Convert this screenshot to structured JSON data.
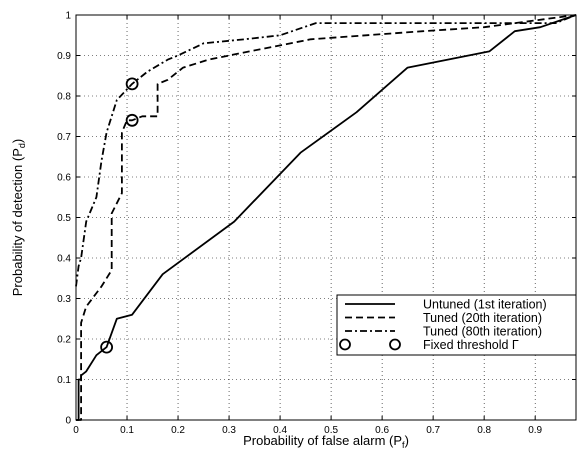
{
  "chart_data": {
    "type": "line",
    "xlabel": "Probability of false alarm (P",
    "xlabel_sub": "f",
    "ylabel": "Probability of detection (P",
    "ylabel_sub": "d",
    "xlim": [
      0,
      0.98
    ],
    "ylim": [
      0,
      1
    ],
    "xticks": [
      0,
      0.1,
      0.2,
      0.3,
      0.4,
      0.5,
      0.6,
      0.7,
      0.8,
      0.9
    ],
    "yticks": [
      0,
      0.1,
      0.2,
      0.3,
      0.4,
      0.5,
      0.6,
      0.7,
      0.8,
      0.9,
      1
    ],
    "grid": true,
    "legend_position": "bottom-right",
    "series": [
      {
        "name": "Untuned (1st iteration)",
        "style": "solid",
        "x": [
          0,
          0.005,
          0.005,
          0.01,
          0.01,
          0.02,
          0.04,
          0.06,
          0.08,
          0.11,
          0.17,
          0.31,
          0.44,
          0.55,
          0.65,
          0.81,
          0.86,
          0.91,
          0.98
        ],
        "y": [
          0,
          0,
          0.1,
          0.1,
          0.11,
          0.12,
          0.16,
          0.18,
          0.25,
          0.26,
          0.36,
          0.49,
          0.66,
          0.76,
          0.87,
          0.91,
          0.96,
          0.97,
          1.0
        ]
      },
      {
        "name": "Tuned (20th iteration)",
        "style": "dashed",
        "x": [
          0,
          0.01,
          0.01,
          0.02,
          0.05,
          0.07,
          0.07,
          0.09,
          0.09,
          0.1,
          0.11,
          0.13,
          0.16,
          0.16,
          0.18,
          0.21,
          0.26,
          0.34,
          0.46,
          0.68,
          0.8,
          0.98
        ],
        "y": [
          0,
          0,
          0.24,
          0.28,
          0.33,
          0.37,
          0.51,
          0.56,
          0.71,
          0.74,
          0.74,
          0.75,
          0.75,
          0.83,
          0.84,
          0.87,
          0.89,
          0.91,
          0.94,
          0.96,
          0.97,
          1.0
        ]
      },
      {
        "name": "Tuned (80th iteration)",
        "style": "dashdot",
        "x": [
          0,
          0.005,
          0.01,
          0.02,
          0.03,
          0.04,
          0.05,
          0.06,
          0.08,
          0.11,
          0.14,
          0.18,
          0.2,
          0.25,
          0.33,
          0.4,
          0.47,
          0.58,
          0.72,
          0.94,
          0.98
        ],
        "y": [
          0.33,
          0.38,
          0.4,
          0.49,
          0.52,
          0.55,
          0.64,
          0.71,
          0.79,
          0.83,
          0.86,
          0.89,
          0.9,
          0.93,
          0.94,
          0.95,
          0.98,
          0.98,
          0.98,
          0.98,
          1.0
        ]
      }
    ],
    "markers": {
      "name": "Fixed threshold Γ",
      "points": [
        {
          "x": 0.06,
          "y": 0.18
        },
        {
          "x": 0.11,
          "y": 0.74
        },
        {
          "x": 0.11,
          "y": 0.83
        }
      ]
    }
  }
}
